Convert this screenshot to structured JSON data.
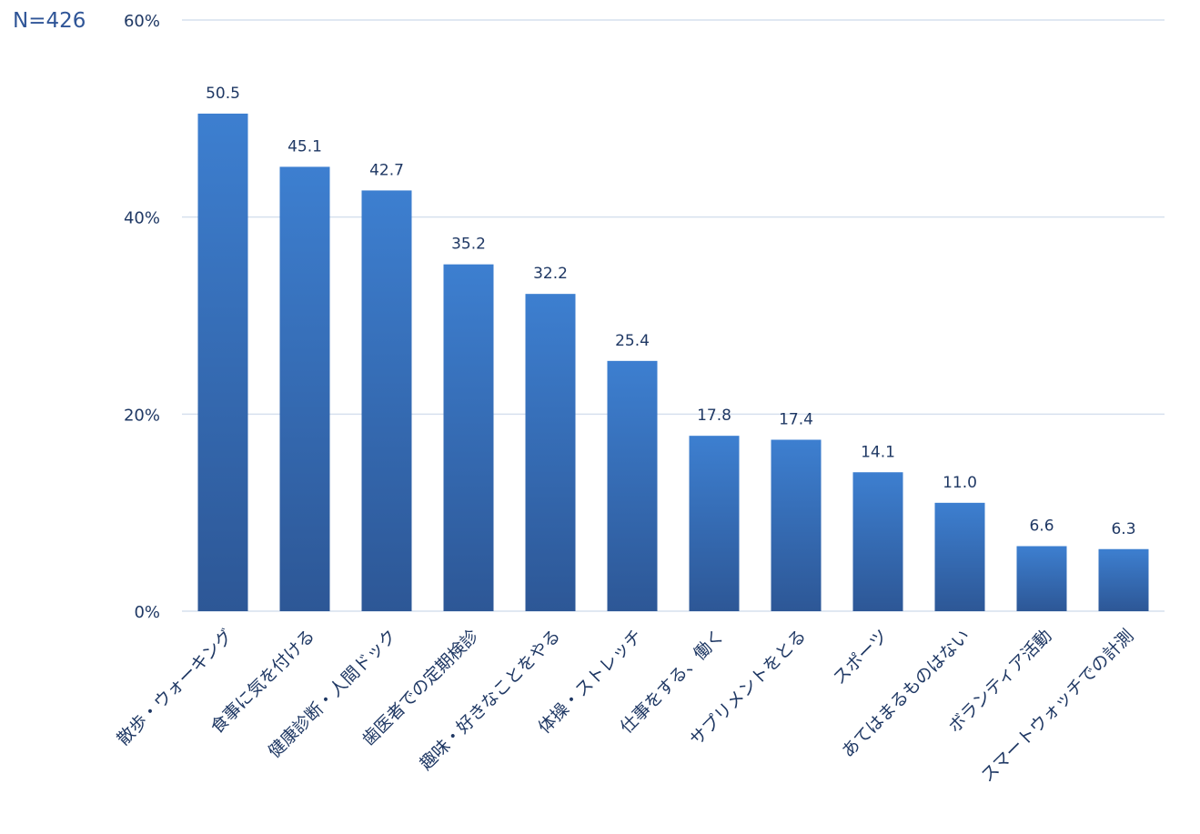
{
  "sample_label": "N=426",
  "colors": {
    "bar_top": "#3d7fd0",
    "bar_bottom": "#2d5796",
    "grid": "#d6e0ee",
    "text": "#1f3864",
    "sample_label": "#2f5597"
  },
  "chart_data": {
    "type": "bar",
    "categories": [
      "散歩・ウォーキング",
      "食事に気を付ける",
      "健康診断・人間ドック",
      "歯医者での定期検診",
      "趣味・好きなことをやる",
      "体操・ストレッチ",
      "仕事をする、働く",
      "サプリメントをとる",
      "スポーツ",
      "あてはまるものはない",
      "ボランティア活動",
      "スマートウォッチでの計測"
    ],
    "values": [
      50.5,
      45.1,
      42.7,
      35.2,
      32.2,
      25.4,
      17.8,
      17.4,
      14.1,
      11.0,
      6.6,
      6.3
    ],
    "value_labels": [
      "50.5",
      "45.1",
      "42.7",
      "35.2",
      "32.2",
      "25.4",
      "17.8",
      "17.4",
      "14.1",
      "11.0",
      "6.6",
      "6.3"
    ],
    "y_ticks": [
      0,
      20,
      40,
      60
    ],
    "y_tick_labels": [
      "0%",
      "20%",
      "40%",
      "60%"
    ],
    "ylim": [
      0,
      60
    ],
    "grid": true,
    "title": "",
    "xlabel": "",
    "ylabel": ""
  }
}
